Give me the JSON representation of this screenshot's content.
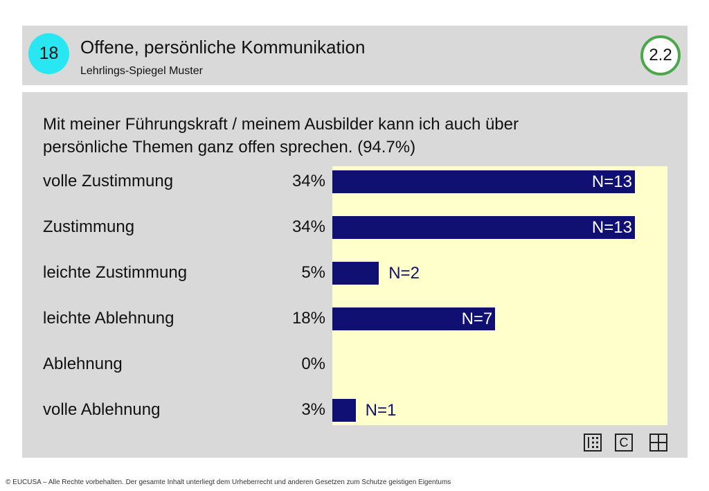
{
  "header": {
    "slide_number": "18",
    "title": "Offene, persönliche Kommunikation",
    "subtitle": "Lehrlings-Spiegel Muster",
    "version": "2.2"
  },
  "question": {
    "line1": "Mit meiner Führungskraft / meinem Ausbilder kann ich auch über",
    "line2": "persönliche Themen ganz offen sprechen. (94.7%)"
  },
  "chart_data": {
    "type": "bar",
    "orientation": "horizontal",
    "categories": [
      "volle Zustimmung",
      "Zustimmung",
      "leichte Zustimmung",
      "leichte Ablehnung",
      "Ablehnung",
      "volle Ablehnung"
    ],
    "percent_labels": [
      "34%",
      "34%",
      "5%",
      "18%",
      "0%",
      "3%"
    ],
    "values": [
      13,
      13,
      2,
      7,
      0,
      1
    ],
    "n_labels": [
      "N=13",
      "N=13",
      "N=2",
      "N=7",
      "",
      "N=1"
    ],
    "xlim": [
      0,
      14.4
    ],
    "grid": false,
    "colors": {
      "bar": "#101073",
      "plot_background": "#ffffcc",
      "panel": "#d9d9d9"
    }
  },
  "nav": {
    "icons": [
      "list-grid-icon",
      "copyright-icon",
      "table-grid-icon"
    ],
    "copyright_glyph": "C"
  },
  "colors": {
    "badge": "#29e7f2",
    "version_ring": "#4aa84a"
  },
  "footer": "© EUCUSA – Alle Rechte vorbehalten. Der gesamte Inhalt unterliegt dem Urheberrecht und anderen Gesetzen zum Schutze geistigen Eigentums"
}
